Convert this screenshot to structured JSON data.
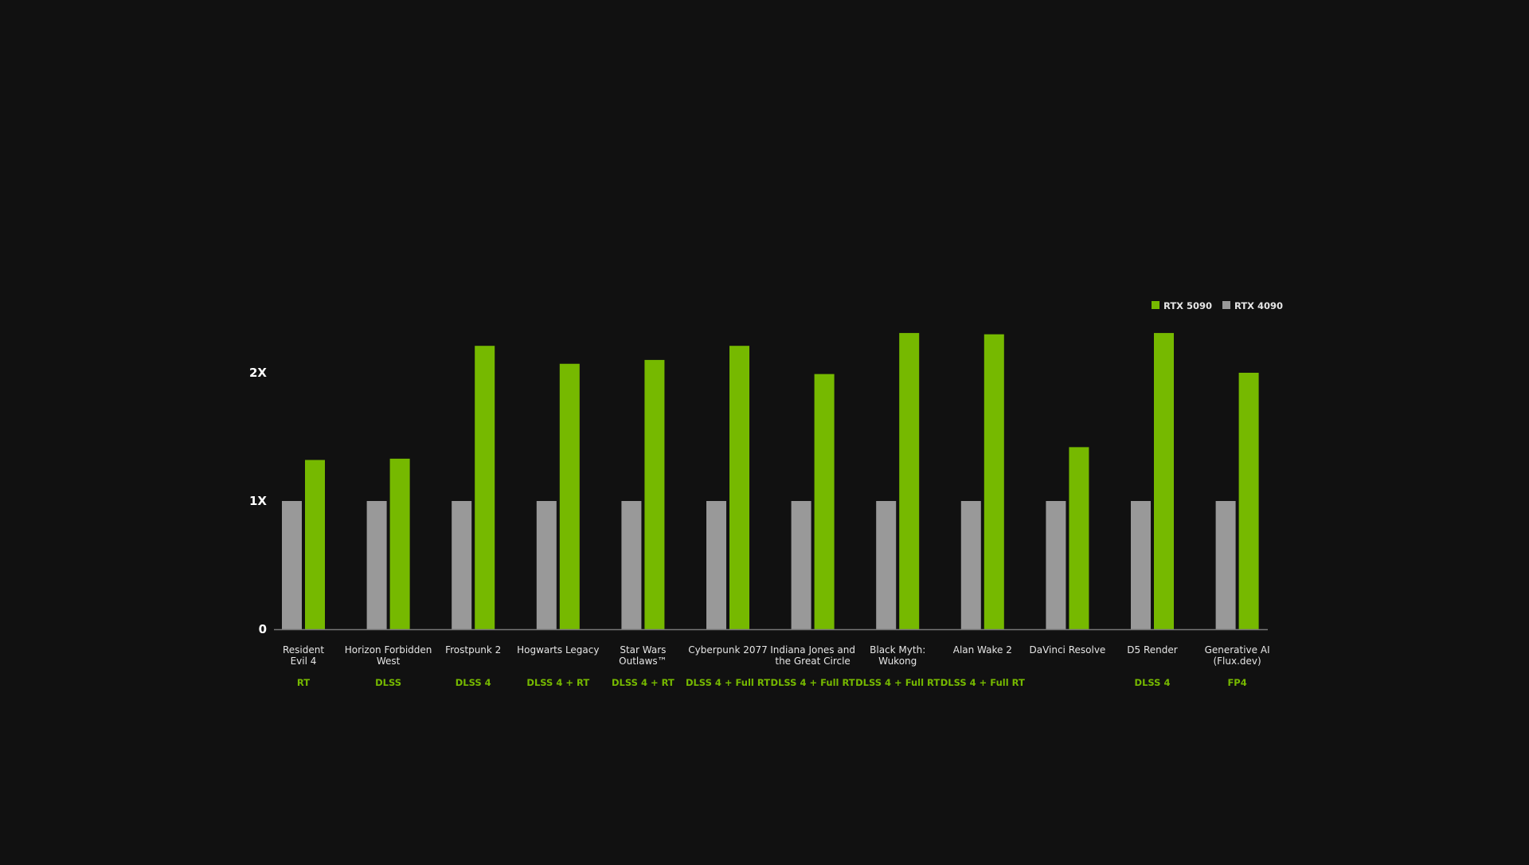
{
  "chart_data": {
    "type": "bar",
    "title": "",
    "xlabel": "",
    "ylabel": "",
    "ylim": [
      0,
      2.5
    ],
    "y_ticks": [
      {
        "value": 0,
        "label": "0"
      },
      {
        "value": 1,
        "label": "1X"
      },
      {
        "value": 2,
        "label": "2X"
      }
    ],
    "grid": false,
    "legend_position": "top-right",
    "categories": [
      [
        "Resident",
        "Evil 4"
      ],
      [
        "Horizon Forbidden",
        "West"
      ],
      [
        "Frostpunk 2"
      ],
      [
        "Hogwarts Legacy"
      ],
      [
        "Star Wars",
        "Outlaws™"
      ],
      [
        "Cyberpunk 2077"
      ],
      [
        "Indiana Jones and",
        "the Great Circle"
      ],
      [
        "Black Myth:",
        "Wukong"
      ],
      [
        "Alan Wake 2"
      ],
      [
        "DaVinci Resolve"
      ],
      [
        "D5 Render"
      ],
      [
        "Generative AI",
        "(Flux.dev)"
      ]
    ],
    "tags": [
      "RT",
      "DLSS",
      "DLSS 4",
      "DLSS 4 + RT",
      "DLSS 4 + RT",
      "DLSS 4 + Full RT",
      "DLSS 4 + Full RT",
      "DLSS 4 + Full RT",
      "DLSS 4 + Full RT",
      "",
      "DLSS 4",
      "FP4"
    ],
    "series": [
      {
        "name": "RTX 4090",
        "color": "#999999",
        "values": [
          1,
          1,
          1,
          1,
          1,
          1,
          1,
          1,
          1,
          1,
          1,
          1
        ]
      },
      {
        "name": "RTX 5090",
        "color": "#76b900",
        "values": [
          1.32,
          1.33,
          2.21,
          2.07,
          2.1,
          2.21,
          1.99,
          2.31,
          2.3,
          1.42,
          2.31,
          2.0
        ]
      }
    ],
    "legend_order": [
      "RTX 5090",
      "RTX 4090"
    ]
  },
  "colors": {
    "background": "#111111",
    "axis": "#777777",
    "accent": "#76b900"
  }
}
